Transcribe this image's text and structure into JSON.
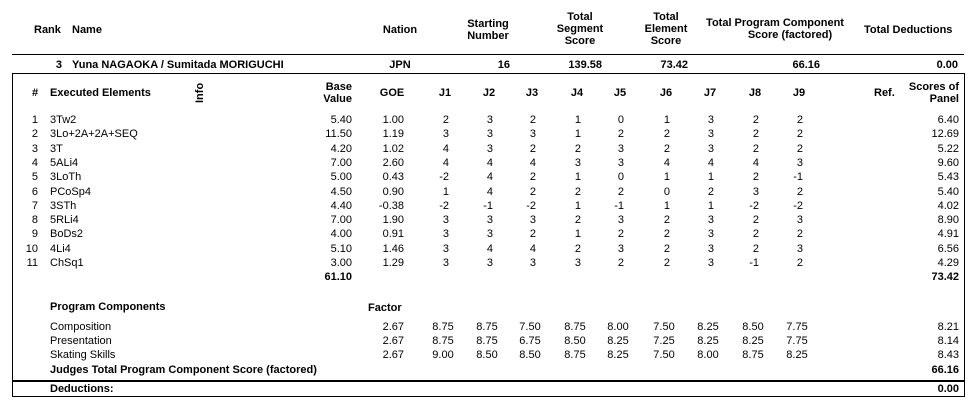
{
  "header": {
    "rank": "Rank",
    "name": "Name",
    "nation": "Nation",
    "starting_number": [
      "Starting",
      "Number"
    ],
    "segment_score": [
      "Total",
      "Segment",
      "Score"
    ],
    "element_score": [
      "Total",
      "Element",
      "Score"
    ],
    "pcs": [
      "Total Program Component",
      "Score (factored)"
    ],
    "deductions": "Total Deductions"
  },
  "skater": {
    "rank": "3",
    "name": "Yuna NAGAOKA / Sumitada MORIGUCHI",
    "nation": "JPN",
    "starting_number": "16",
    "segment_score": "139.58",
    "element_score": "73.42",
    "pcs": "66.16",
    "deductions": "0.00"
  },
  "elements_header": {
    "num": "#",
    "executed": "Executed Elements",
    "info": "Info",
    "base_value": [
      "Base",
      "Value"
    ],
    "goe": "GOE",
    "judges": [
      "J1",
      "J2",
      "J3",
      "J4",
      "J5",
      "J6",
      "J7",
      "J8",
      "J9"
    ],
    "ref": "Ref.",
    "scores": [
      "Scores of",
      "Panel"
    ]
  },
  "elements": [
    {
      "num": "1",
      "name": "3Tw2",
      "base": "5.40",
      "goe": "1.00",
      "j": [
        "2",
        "3",
        "2",
        "1",
        "0",
        "1",
        "3",
        "2",
        "2"
      ],
      "score": "6.40"
    },
    {
      "num": "2",
      "name": "3Lo+2A+2A+SEQ",
      "base": "11.50",
      "goe": "1.19",
      "j": [
        "3",
        "3",
        "3",
        "1",
        "2",
        "2",
        "3",
        "2",
        "2"
      ],
      "score": "12.69"
    },
    {
      "num": "3",
      "name": "3T",
      "base": "4.20",
      "goe": "1.02",
      "j": [
        "4",
        "3",
        "2",
        "2",
        "3",
        "2",
        "3",
        "2",
        "2"
      ],
      "score": "5.22"
    },
    {
      "num": "4",
      "name": "5ALi4",
      "base": "7.00",
      "goe": "2.60",
      "j": [
        "4",
        "4",
        "4",
        "3",
        "3",
        "4",
        "4",
        "4",
        "3"
      ],
      "score": "9.60"
    },
    {
      "num": "5",
      "name": "3LoTh",
      "base": "5.00",
      "goe": "0.43",
      "j": [
        "-2",
        "4",
        "2",
        "1",
        "0",
        "1",
        "1",
        "2",
        "-1"
      ],
      "score": "5.43"
    },
    {
      "num": "6",
      "name": "PCoSp4",
      "base": "4.50",
      "goe": "0.90",
      "j": [
        "1",
        "4",
        "2",
        "2",
        "2",
        "0",
        "2",
        "3",
        "2"
      ],
      "score": "5.40"
    },
    {
      "num": "7",
      "name": "3STh",
      "base": "4.40",
      "goe": "-0.38",
      "j": [
        "-2",
        "-1",
        "-2",
        "1",
        "-1",
        "1",
        "1",
        "-2",
        "-2"
      ],
      "score": "4.02"
    },
    {
      "num": "8",
      "name": "5RLi4",
      "base": "7.00",
      "goe": "1.90",
      "j": [
        "3",
        "3",
        "3",
        "2",
        "3",
        "2",
        "3",
        "2",
        "3"
      ],
      "score": "8.90"
    },
    {
      "num": "9",
      "name": "BoDs2",
      "base": "4.00",
      "goe": "0.91",
      "j": [
        "3",
        "3",
        "2",
        "1",
        "2",
        "2",
        "3",
        "2",
        "2"
      ],
      "score": "4.91"
    },
    {
      "num": "10",
      "name": "4Li4",
      "base": "5.10",
      "goe": "1.46",
      "j": [
        "3",
        "4",
        "4",
        "2",
        "3",
        "2",
        "3",
        "2",
        "3"
      ],
      "score": "6.56"
    },
    {
      "num": "11",
      "name": "ChSq1",
      "base": "3.00",
      "goe": "1.29",
      "j": [
        "3",
        "3",
        "3",
        "3",
        "2",
        "2",
        "3",
        "-1",
        "2"
      ],
      "score": "4.29"
    }
  ],
  "totals": {
    "base": "61.10",
    "score": "73.42"
  },
  "components": {
    "title": "Program Components",
    "factor_label": "Factor",
    "rows": [
      {
        "name": "Composition",
        "factor": "2.67",
        "j": [
          "8.75",
          "8.75",
          "7.50",
          "8.75",
          "8.00",
          "7.50",
          "8.25",
          "8.50",
          "7.75"
        ],
        "score": "8.21"
      },
      {
        "name": "Presentation",
        "factor": "2.67",
        "j": [
          "8.75",
          "8.75",
          "6.75",
          "8.50",
          "8.25",
          "7.25",
          "8.25",
          "8.25",
          "7.75"
        ],
        "score": "8.14"
      },
      {
        "name": "Skating Skills",
        "factor": "2.67",
        "j": [
          "9.00",
          "8.50",
          "8.50",
          "8.75",
          "8.25",
          "7.50",
          "8.00",
          "8.75",
          "8.25"
        ],
        "score": "8.43"
      }
    ],
    "judges_total_label": "Judges Total Program Component Score (factored)",
    "judges_total": "66.16"
  },
  "deductions": {
    "label": "Deductions:",
    "value": "0.00"
  }
}
